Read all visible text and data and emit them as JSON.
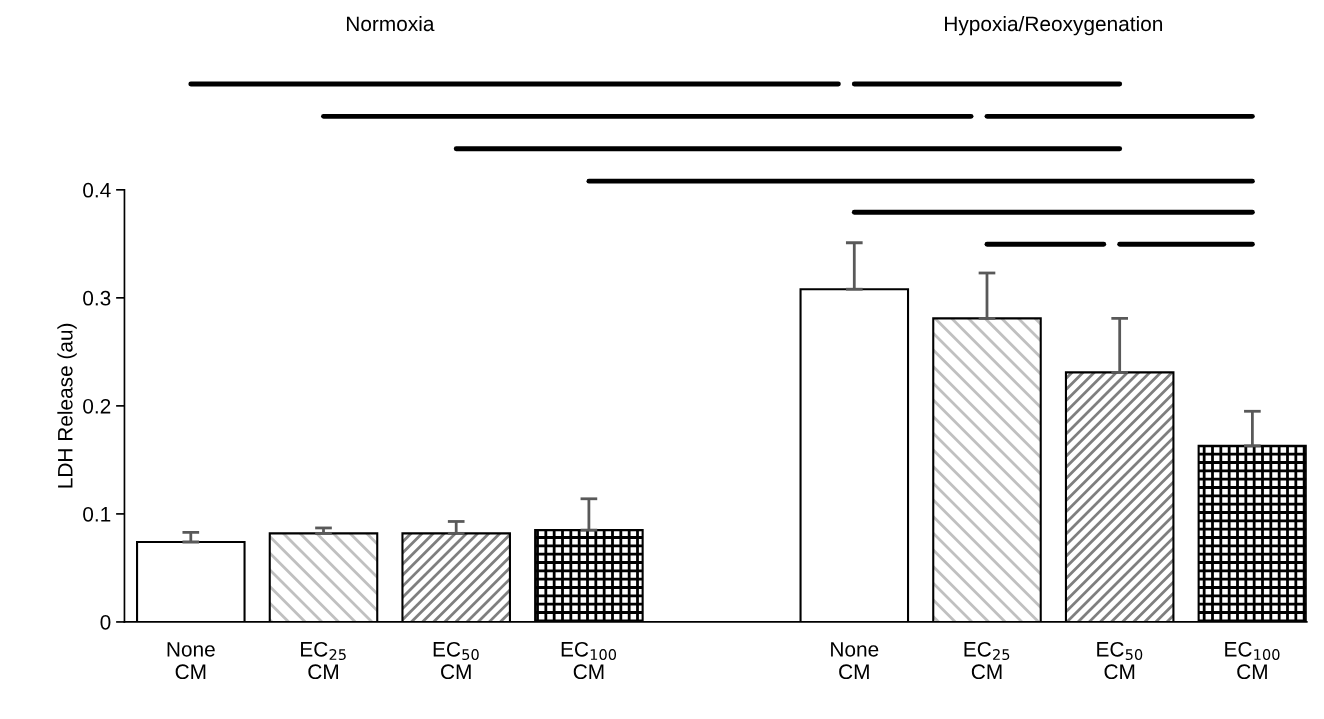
{
  "chart_data": {
    "type": "bar",
    "ylabel": "LDH Release (au)",
    "categories": [
      "None\nCM",
      "EC$_{25}$\nCM",
      "EC$_{50}$\nCM",
      "EC$_{100}$\nCM",
      null,
      "None\nCM",
      "EC$_{25}$\nCM",
      "EC$_{50}$\nCM",
      "EC$_{100}$\nCM"
    ],
    "values": [
      0.074,
      0.082,
      0.082,
      0.085,
      null,
      0.308,
      0.281,
      0.231,
      0.163
    ],
    "errors": [
      0.009,
      0.005,
      0.011,
      0.029,
      null,
      0.043,
      0.042,
      0.05,
      0.032
    ],
    "colors": [
      "#ffffff",
      "#c0c0c0",
      "#7f7f7f",
      "#000000",
      null,
      "#ffffff",
      "#c0c0c0",
      "#7f7f7f",
      "#000000"
    ],
    "annotations": [
      "Normoxia",
      "Hypoxia/Reoxygenation"
    ],
    "ylim": [
      0,
      0.4
    ],
    "yticks": [
      0,
      0.1,
      0.2,
      0.3,
      0.4
    ],
    "grid": false,
    "legend": false
  }
}
